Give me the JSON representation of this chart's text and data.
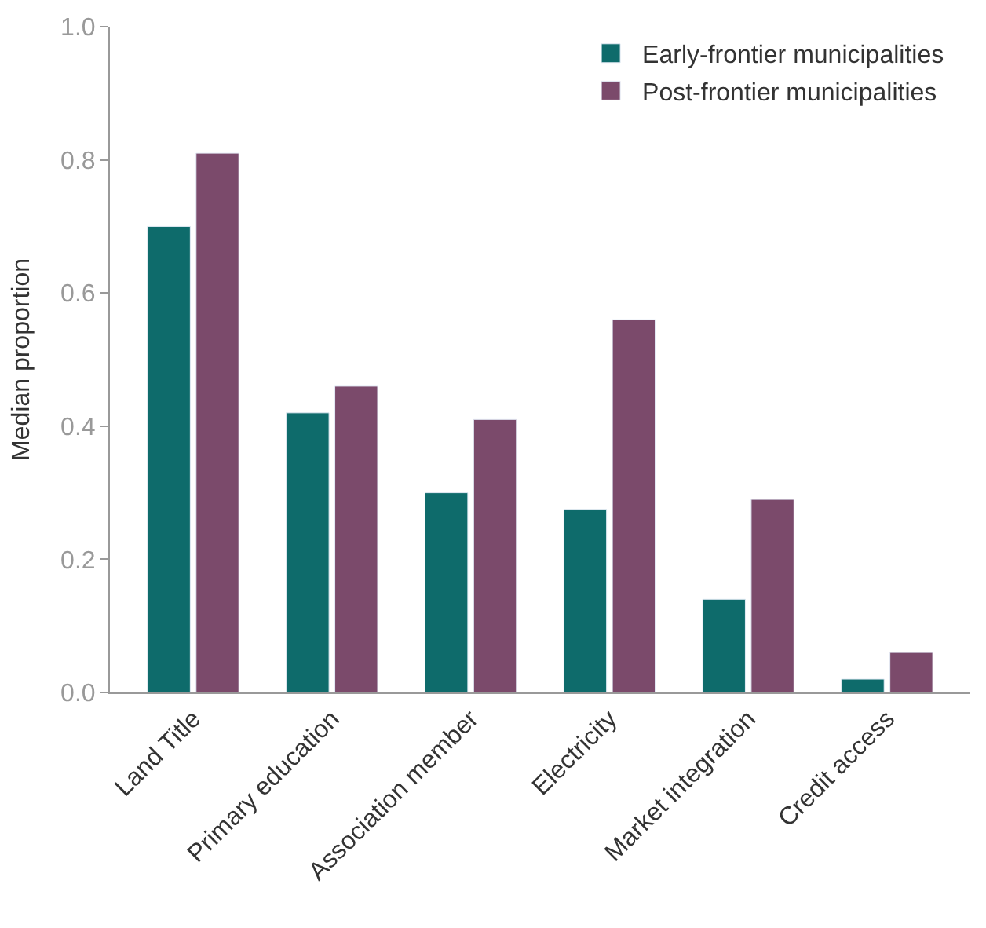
{
  "chart_data": {
    "type": "bar",
    "ylabel": "Median proportion",
    "categories": [
      "Land Title",
      "Primary education",
      "Association member",
      "Electricity",
      "Market integration",
      "Credit access"
    ],
    "series": [
      {
        "name": "Early-frontier municipalities",
        "color": "#0e6b6b",
        "values": [
          0.7,
          0.42,
          0.3,
          0.275,
          0.14,
          0.02
        ]
      },
      {
        "name": "Post-frontier municipalities",
        "color": "#7b4a6b",
        "values": [
          0.81,
          0.46,
          0.41,
          0.56,
          0.29,
          0.06
        ]
      }
    ],
    "ylim": [
      0,
      1.0
    ],
    "yticks": [
      {
        "value": 0,
        "label": "0.0"
      },
      0.2,
      0.4,
      0.6,
      0.8,
      {
        "value": 1,
        "label": "1.0"
      }
    ],
    "legend": "top right"
  }
}
